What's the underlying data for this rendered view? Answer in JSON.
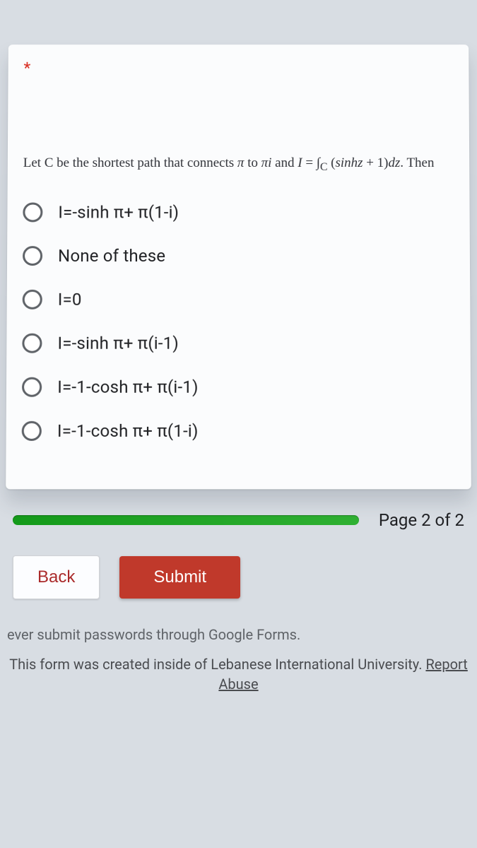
{
  "required_marker": "*",
  "question_html": "Let C be the shortest path that connects <span class='int'>π</span> to <span class='int'>πi</span> and <span class='int'>I</span> = ∫<sub>C</sub> (<span class='int'>sinhz</span> + 1)<span class='int'>dz</span>. Then",
  "options": [
    "I=-sinh π+ π(1-i)",
    "None of these",
    "I=0",
    "I=-sinh π+ π(i-1)",
    "I=-1-cosh π+ π(i-1)",
    "I=-1-cosh π+ π(1-i)"
  ],
  "page_indicator": "Page 2 of 2",
  "back_label": "Back",
  "submit_label": "Submit",
  "footer_warning": "ever submit passwords through Google Forms.",
  "footer_attribution_prefix": "This form was created inside of Lebanese International University. ",
  "footer_report": "Report Abuse",
  "colors": {
    "page_bg": "#d8dde3",
    "card_bg": "#fbfcfd",
    "text": "#202124",
    "muted": "#5f6368",
    "required": "#d93025",
    "progress": "#1fa326",
    "back_text": "#aa2a2a",
    "submit_bg": "#c0392b"
  }
}
